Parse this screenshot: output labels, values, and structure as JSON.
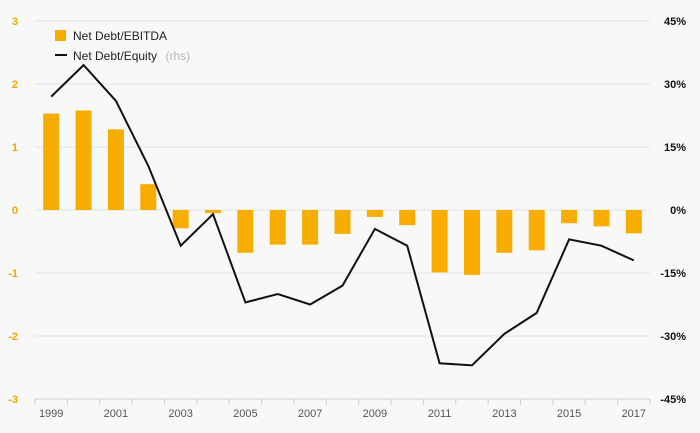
{
  "colors": {
    "bar": "#f7ad00",
    "line": "#111111",
    "left_axis_text": "#f0a800",
    "right_axis_text": "#111111",
    "background": "#f8f8f8"
  },
  "legend": {
    "bar_label": "Net Debt/EBITDA",
    "line_label": "Net Debt/Equity",
    "line_suffix": "(rhs)",
    "placement": "top-left"
  },
  "chart_data": {
    "type": "bar",
    "title": "",
    "x": [
      1999,
      2000,
      2001,
      2002,
      2003,
      2004,
      2005,
      2006,
      2007,
      2008,
      2009,
      2010,
      2011,
      2012,
      2013,
      2014,
      2015,
      2016,
      2017
    ],
    "x_tick_labels": [
      "1999",
      "2001",
      "2003",
      "2005",
      "2007",
      "2009",
      "2011",
      "2013",
      "2015",
      "2017"
    ],
    "y_left": {
      "ylim": [
        -3,
        3
      ],
      "tick_labels": [
        "3",
        "2",
        "1",
        "0",
        "-1",
        "-2",
        "-3"
      ]
    },
    "y_right": {
      "ylim": [
        -45,
        45
      ],
      "tick_labels": [
        "45%",
        "30%",
        "15%",
        "0%",
        "-15%",
        "-30%",
        "-45%"
      ]
    },
    "grid": true,
    "series": [
      {
        "name": "Net Debt/EBITDA",
        "type": "bar",
        "axis": "left",
        "values": [
          1.53,
          1.58,
          1.28,
          0.41,
          -0.29,
          -0.05,
          -0.68,
          -0.55,
          -0.55,
          -0.38,
          -0.11,
          -0.24,
          -0.99,
          -1.03,
          -0.68,
          -0.64,
          -0.21,
          -0.26,
          -0.37
        ]
      },
      {
        "name": "Net Debt/Equity",
        "type": "line",
        "axis": "right",
        "values": [
          27,
          34.5,
          26,
          10.5,
          -8.5,
          -1,
          -22,
          -20,
          -22.5,
          -18,
          -4.5,
          -8.5,
          -36.5,
          -37,
          -29.5,
          -24.5,
          -7,
          -8.5,
          -12
        ]
      }
    ]
  }
}
